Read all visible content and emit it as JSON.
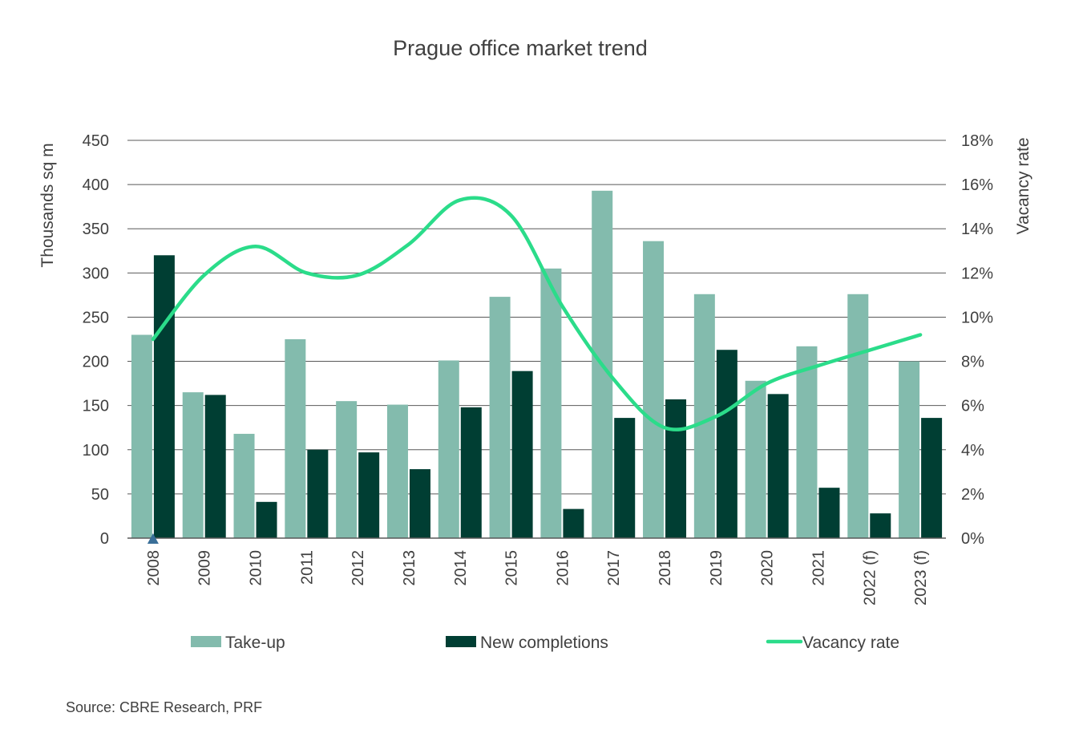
{
  "chart_data": {
    "type": "bar",
    "title": "Prague office market trend",
    "source": "Source: CBRE Research, PRF",
    "categories": [
      "2008",
      "2009",
      "2010",
      "2011",
      "2012",
      "2013",
      "2014",
      "2015",
      "2016",
      "2017",
      "2018",
      "2019",
      "2020",
      "2021",
      "2022 (f)",
      "2023 (f)"
    ],
    "series": [
      {
        "name": "Take-up",
        "type": "bar",
        "axis": "left",
        "color": "#83bbad",
        "values": [
          230,
          165,
          118,
          225,
          155,
          151,
          201,
          273,
          305,
          393,
          336,
          276,
          178,
          217,
          276,
          200
        ]
      },
      {
        "name": "New completions",
        "type": "bar",
        "axis": "left",
        "color": "#003e33",
        "values": [
          320,
          162,
          41,
          100,
          97,
          78,
          148,
          189,
          33,
          136,
          157,
          213,
          163,
          57,
          28,
          136
        ]
      },
      {
        "name": "Vacancy rate",
        "type": "line",
        "axis": "right",
        "color": "#2bdc8a",
        "values": [
          9.0,
          11.9,
          13.2,
          12.0,
          11.9,
          13.3,
          15.3,
          14.6,
          10.5,
          7.2,
          5.0,
          5.5,
          7.0,
          7.8,
          8.5,
          9.2
        ]
      }
    ],
    "ylabel": "Thousands sq m",
    "y2label": "Vacancy rate",
    "ylim": [
      0,
      450
    ],
    "yticks": [
      "0",
      "50",
      "100",
      "150",
      "200",
      "250",
      "300",
      "350",
      "400",
      "450"
    ],
    "y2lim": [
      0,
      18
    ],
    "y2ticks": [
      "0%",
      "2%",
      "4%",
      "6%",
      "8%",
      "10%",
      "12%",
      "14%",
      "16%",
      "18%"
    ],
    "grid": true,
    "legend_position": "bottom",
    "annotation": {
      "shape": "triangle",
      "color": "#3a6f98",
      "category": "2008"
    }
  }
}
